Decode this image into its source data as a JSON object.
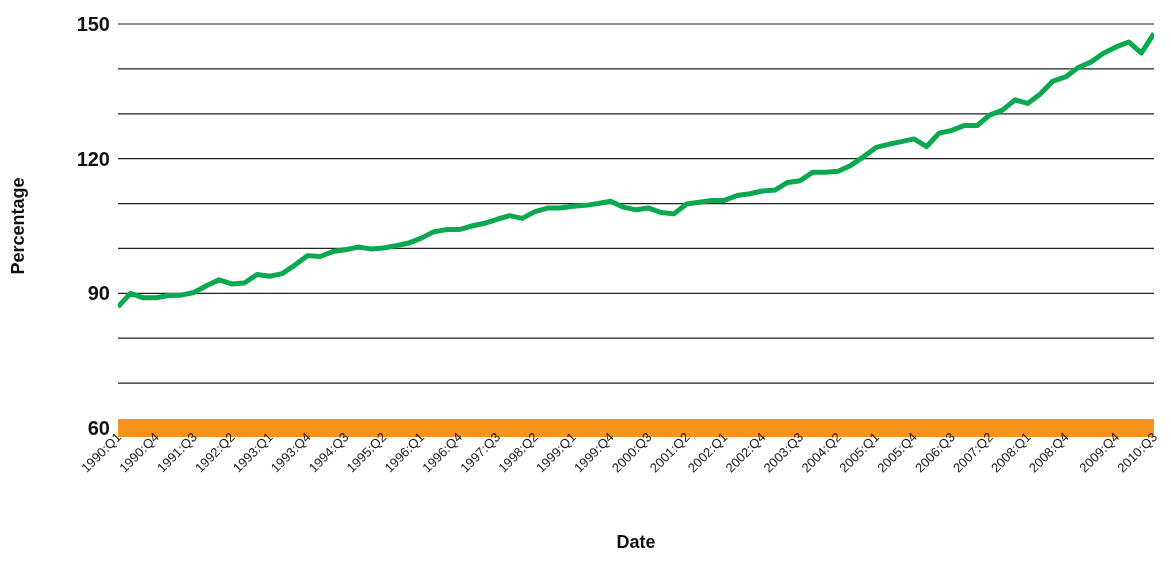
{
  "chart_data": {
    "type": "line",
    "xlabel": "Date",
    "ylabel": "Percentage",
    "categories": [
      "1990:Q1",
      null,
      null,
      "1990:Q4",
      null,
      null,
      "1991:Q3",
      null,
      null,
      "1992:Q2",
      null,
      null,
      "1993:Q1",
      null,
      null,
      "1993:Q4",
      null,
      null,
      "1994:Q3",
      null,
      null,
      "1995:Q2",
      null,
      null,
      "1996:Q1",
      null,
      null,
      "1996:Q4",
      null,
      null,
      "1997:Q3",
      null,
      null,
      "1998:Q2",
      null,
      null,
      "1999:Q1",
      null,
      null,
      "1999:Q4",
      null,
      null,
      "2000:Q3",
      null,
      null,
      "2001:Q2",
      null,
      null,
      "2002:Q1",
      null,
      null,
      "2002:Q4",
      null,
      null,
      "2003:Q3",
      null,
      null,
      "2004:Q2",
      null,
      null,
      "2005:Q1",
      null,
      null,
      "2005:Q4",
      null,
      null,
      "2006:Q3",
      null,
      null,
      "2007:Q2",
      null,
      null,
      "2008:Q1",
      null,
      null,
      "2008:Q4",
      null,
      null,
      null,
      "2009:Q4",
      null,
      null,
      "2010:Q3"
    ],
    "series": [
      {
        "color": "#0aa84f",
        "values": [
          87,
          90,
          89,
          89,
          89.5,
          89.6,
          90.2,
          91.7,
          93,
          92.1,
          92.3,
          94.2,
          93.8,
          94.4,
          96.3,
          98.4,
          98.2,
          99.3,
          99.7,
          100.3,
          99.9,
          100.1,
          100.6,
          101.2,
          102.3,
          103.7,
          104.2,
          104.2,
          105,
          105.6,
          106.5,
          107.3,
          106.7,
          108.2,
          109,
          109,
          109.4,
          109.6,
          110,
          110.5,
          109.2,
          108.6,
          109,
          108,
          107.7,
          109.9,
          110.3,
          110.7,
          110.7,
          111.8,
          112.2,
          112.8,
          113,
          114.7,
          115.1,
          117,
          117,
          117.2,
          118.5,
          120.4,
          122.5,
          123.2,
          123.8,
          124.4,
          122.7,
          125.7,
          126.3,
          127.4,
          127.4,
          129.7,
          130.8,
          133.1,
          132.3,
          134.4,
          137.3,
          138.2,
          140.3,
          141.5,
          143.5,
          144.9,
          146,
          143.5,
          147.9
        ]
      }
    ],
    "ylim": [
      60,
      150
    ],
    "yticks": [
      60,
      {
        "value": 70,
        "label": null
      },
      {
        "value": 80,
        "label": null
      },
      90,
      {
        "value": 100,
        "label": null
      },
      {
        "value": 110,
        "label": null
      },
      120,
      {
        "value": 130,
        "label": null
      },
      {
        "value": 140,
        "label": null
      },
      150
    ],
    "grid": "y",
    "marker": "none",
    "line_style": "solid"
  }
}
